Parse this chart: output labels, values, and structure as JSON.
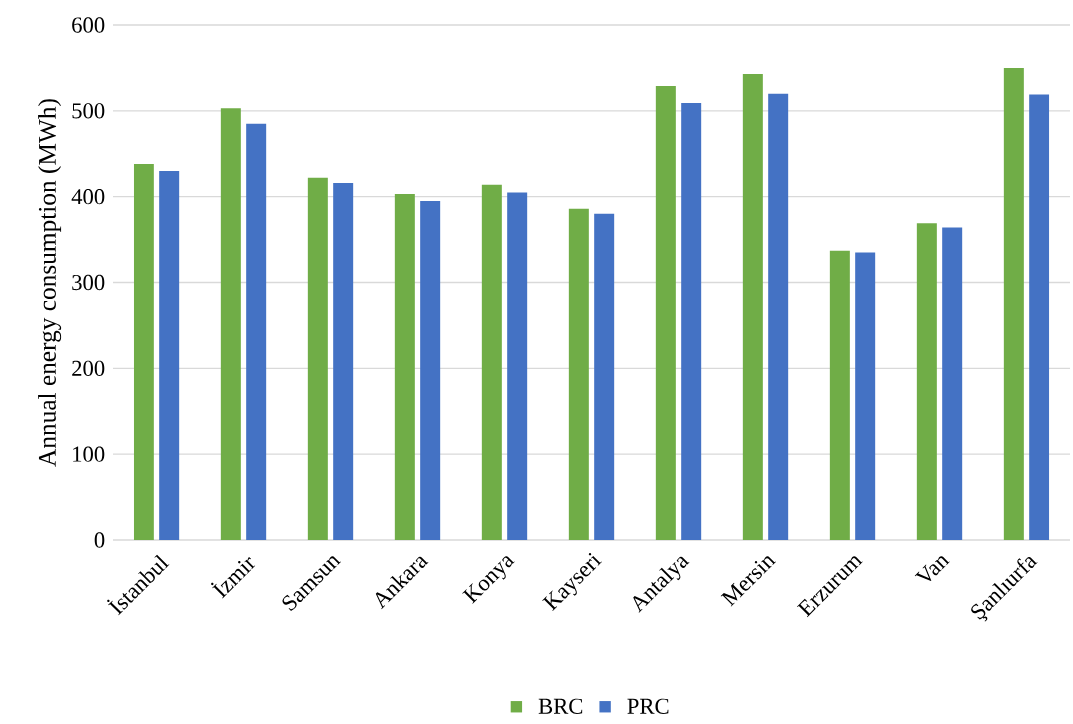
{
  "chart_data": {
    "type": "bar",
    "ylabel": "Annual energy consumption (MWh)",
    "categories": [
      "İstanbul",
      "İzmir",
      "Samsun",
      "Ankara",
      "Konya",
      "Kayseri",
      "Antalya",
      "Mersin",
      "Erzurum",
      "Van",
      "Şanlıurfa"
    ],
    "series": [
      {
        "name": "BRC",
        "color": "#70ad47",
        "values": [
          438,
          503,
          422,
          403,
          414,
          386,
          529,
          543,
          337,
          369,
          550
        ]
      },
      {
        "name": "PRC",
        "color": "#4472c4",
        "values": [
          430,
          485,
          416,
          395,
          405,
          380,
          509,
          520,
          335,
          364,
          519
        ]
      }
    ],
    "ylim": [
      0,
      600
    ],
    "yticks": [
      0,
      100,
      200,
      300,
      400,
      500,
      600
    ],
    "grid": "y",
    "legend": "bottom"
  }
}
